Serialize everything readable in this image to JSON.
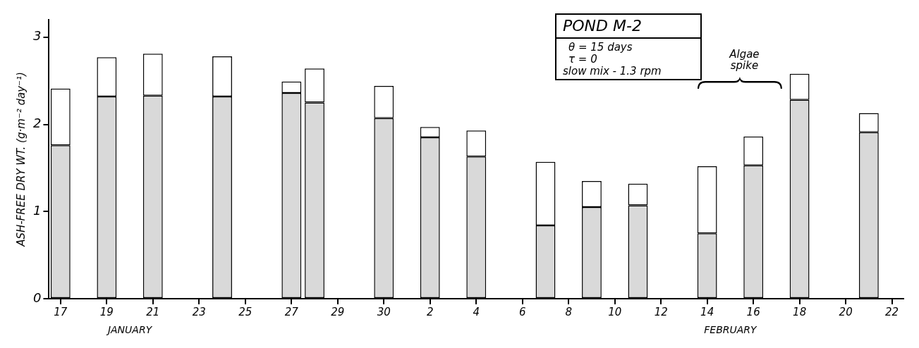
{
  "chart_data": {
    "type": "bar",
    "stacked": true,
    "categories": [
      "17",
      null,
      "19",
      null,
      "21",
      null,
      "23",
      null,
      "25",
      null,
      "27",
      null,
      "29",
      null,
      "30",
      null,
      "2",
      null,
      "4",
      null,
      "6",
      null,
      "8",
      null,
      "10",
      null,
      "12",
      null,
      "14",
      null,
      "16",
      null,
      "18",
      null,
      "20",
      null,
      "22"
    ],
    "series": [
      {
        "color": "#d9d9d9",
        "values": [
          1.76,
          null,
          2.32,
          null,
          2.33,
          null,
          null,
          2.32,
          null,
          null,
          2.36,
          2.25,
          null,
          null,
          2.07,
          null,
          1.85,
          null,
          1.63,
          null,
          null,
          0.84,
          null,
          1.05,
          null,
          1.07,
          null,
          null,
          0.75,
          null,
          1.53,
          null,
          2.28,
          null,
          null,
          1.91,
          null
        ]
      },
      {
        "color": "#ffffff",
        "values": [
          0.65,
          null,
          0.45,
          null,
          0.48,
          null,
          null,
          0.46,
          null,
          null,
          0.13,
          0.39,
          null,
          null,
          0.37,
          null,
          0.12,
          null,
          0.3,
          null,
          null,
          0.73,
          null,
          0.3,
          null,
          0.25,
          null,
          null,
          0.77,
          null,
          0.33,
          null,
          0.3,
          null,
          null,
          0.22,
          null
        ]
      }
    ],
    "ylabel": "ASH-FREE DRY WT. (g·m⁻² day⁻¹)",
    "ylim": [
      0,
      3.2
    ],
    "yticks": [
      0,
      1,
      2,
      3
    ],
    "grid": false,
    "legend": false,
    "annotations": [
      "POND M-2",
      "θ = 15 days",
      "τ = 0",
      "slow mix - 1.3 rpm",
      "Algae spike",
      "JANUARY",
      "FEBRUARY"
    ]
  }
}
